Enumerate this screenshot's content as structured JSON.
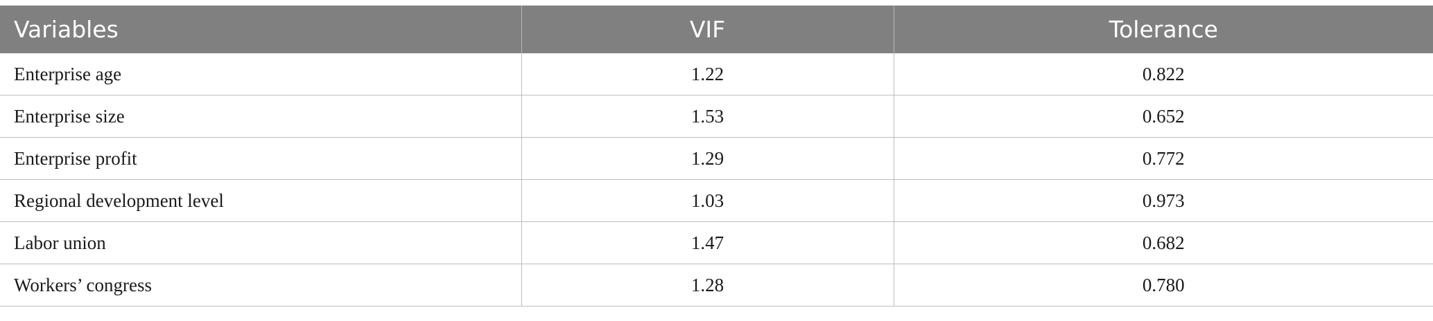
{
  "table": {
    "headers": [
      "Variables",
      "VIF",
      "Tolerance"
    ],
    "rows": [
      [
        "Enterprise age",
        "1.22",
        "0.822"
      ],
      [
        "Enterprise size",
        "1.53",
        "0.652"
      ],
      [
        "Enterprise profit",
        "1.29",
        "0.772"
      ],
      [
        "Regional development level",
        "1.03",
        "0.973"
      ],
      [
        "Labor union",
        "1.47",
        "0.682"
      ],
      [
        "Workers’ congress",
        "1.28",
        "0.780"
      ]
    ]
  },
  "colors": {
    "header_bg": "#808080",
    "header_text": "#ffffff",
    "body_text": "#1a1a1a",
    "grid_line": "#bdbdbd"
  }
}
